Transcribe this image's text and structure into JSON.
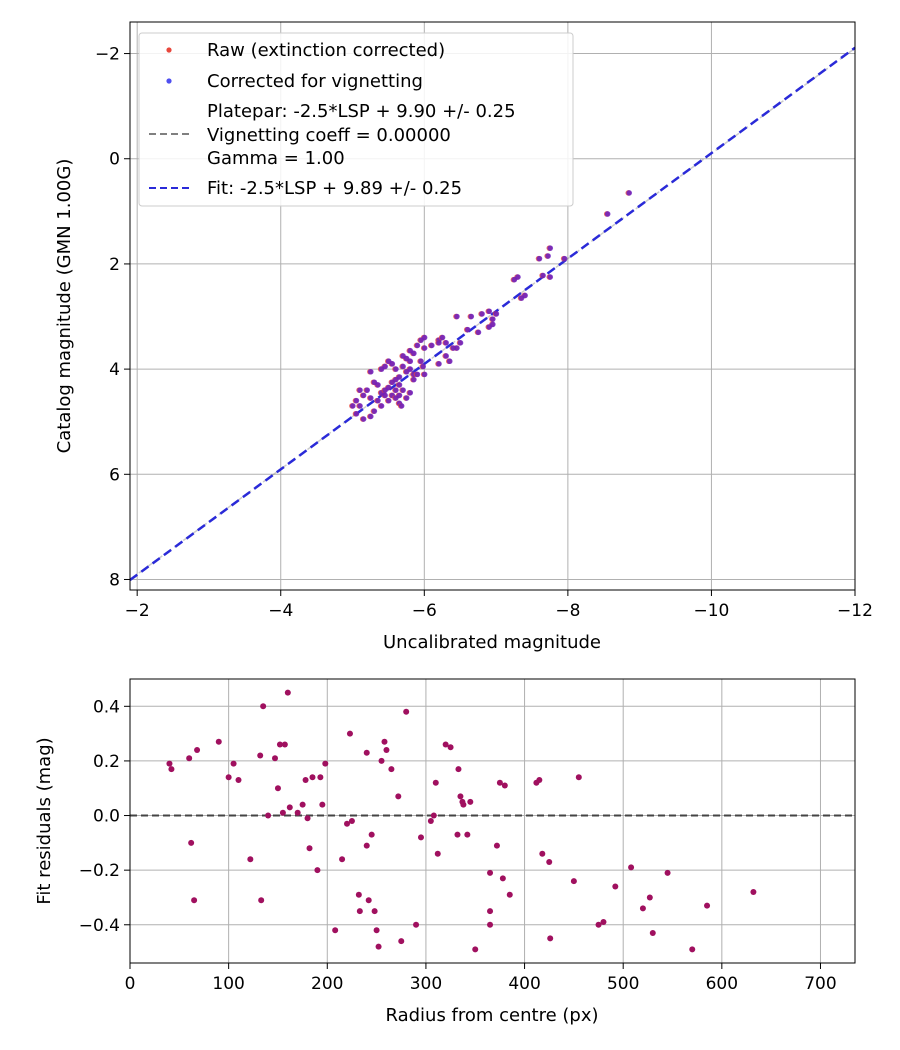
{
  "chart_data": [
    {
      "type": "scatter",
      "xlabel": "Uncalibrated magnitude",
      "ylabel": "Catalog magnitude (GMN 1.00G)",
      "xlim": [
        -1.9,
        -12
      ],
      "ylim": [
        8.2,
        -2.6
      ],
      "xticks": [
        -2,
        -4,
        -6,
        -8,
        -10,
        -12
      ],
      "xtick_labels": [
        "−2",
        "−4",
        "−6",
        "−8",
        "−10",
        "−12"
      ],
      "yticks": [
        -2,
        0,
        2,
        4,
        6,
        8
      ],
      "ytick_labels": [
        "−2",
        "0",
        "2",
        "4",
        "6",
        "8"
      ],
      "grid": true,
      "legend": {
        "position": "top-left",
        "raw_label": "Raw (extinction corrected)",
        "corrected_label": "Corrected for vignetting",
        "platepar_line1": "Platepar: -2.5*LSP + 9.90 +/- 0.25",
        "platepar_line2": "Vignetting coeff = 0.00000",
        "platepar_line3": "Gamma = 1.00",
        "fit_label": "Fit: -2.5*LSP + 9.89 +/- 0.25"
      },
      "colors": {
        "raw": "#e8473c",
        "corrected": "#4f4ff0",
        "overlap": "#6a1fbf",
        "fit": "#2a2ad8",
        "platepar": "#808080"
      },
      "fit_line": {
        "x": [
          -1.9,
          -12
        ],
        "y": [
          8.01,
          -2.11
        ]
      },
      "platepar_line": {
        "x": [
          -1.9,
          -12
        ],
        "y": [
          8.0,
          -2.1
        ]
      },
      "points": [
        [
          -8.85,
          0.65
        ],
        [
          -8.55,
          1.05
        ],
        [
          -7.95,
          1.9
        ],
        [
          -7.75,
          1.7
        ],
        [
          -7.72,
          1.85
        ],
        [
          -7.6,
          1.9
        ],
        [
          -7.75,
          2.25
        ],
        [
          -7.65,
          2.22
        ],
        [
          -7.3,
          2.25
        ],
        [
          -7.25,
          2.3
        ],
        [
          -7.4,
          2.6
        ],
        [
          -7.35,
          2.65
        ],
        [
          -7.0,
          2.95
        ],
        [
          -6.9,
          2.9
        ],
        [
          -6.8,
          2.95
        ],
        [
          -6.95,
          3.05
        ],
        [
          -6.65,
          3.0
        ],
        [
          -6.95,
          3.15
        ],
        [
          -6.9,
          3.2
        ],
        [
          -6.45,
          3.0
        ],
        [
          -6.6,
          3.25
        ],
        [
          -6.75,
          3.3
        ],
        [
          -6.5,
          3.5
        ],
        [
          -6.45,
          3.6
        ],
        [
          -6.4,
          3.6
        ],
        [
          -6.3,
          3.75
        ],
        [
          -6.3,
          3.5
        ],
        [
          -6.2,
          3.45
        ],
        [
          -6.25,
          3.4
        ],
        [
          -6.2,
          3.5
        ],
        [
          -6.2,
          3.9
        ],
        [
          -6.35,
          3.85
        ],
        [
          -6.1,
          3.55
        ],
        [
          -6.0,
          3.4
        ],
        [
          -5.95,
          3.45
        ],
        [
          -5.9,
          3.55
        ],
        [
          -6.0,
          3.6
        ],
        [
          -5.85,
          3.7
        ],
        [
          -5.8,
          3.65
        ],
        [
          -5.95,
          3.85
        ],
        [
          -6.0,
          4.1
        ],
        [
          -5.98,
          3.95
        ],
        [
          -5.8,
          3.85
        ],
        [
          -5.75,
          3.8
        ],
        [
          -5.7,
          3.75
        ],
        [
          -5.8,
          4.0
        ],
        [
          -5.85,
          4.1
        ],
        [
          -5.75,
          4.05
        ],
        [
          -5.7,
          3.95
        ],
        [
          -5.65,
          4.15
        ],
        [
          -5.6,
          4.0
        ],
        [
          -5.55,
          3.9
        ],
        [
          -5.5,
          3.85
        ],
        [
          -5.45,
          3.95
        ],
        [
          -5.4,
          4.0
        ],
        [
          -5.65,
          4.3
        ],
        [
          -5.6,
          4.2
        ],
        [
          -5.55,
          4.25
        ],
        [
          -5.7,
          4.4
        ],
        [
          -5.65,
          4.5
        ],
        [
          -5.6,
          4.4
        ],
        [
          -5.5,
          4.35
        ],
        [
          -5.45,
          4.5
        ],
        [
          -5.4,
          4.45
        ],
        [
          -5.35,
          4.3
        ],
        [
          -5.3,
          4.25
        ],
        [
          -5.25,
          4.05
        ],
        [
          -5.25,
          4.55
        ],
        [
          -5.2,
          4.4
        ],
        [
          -5.15,
          4.5
        ],
        [
          -5.1,
          4.7
        ],
        [
          -5.05,
          4.6
        ],
        [
          -5.0,
          4.7
        ],
        [
          -5.05,
          4.85
        ],
        [
          -5.15,
          4.95
        ],
        [
          -5.1,
          4.4
        ],
        [
          -5.35,
          4.6
        ],
        [
          -5.4,
          4.7
        ],
        [
          -5.5,
          4.6
        ],
        [
          -5.55,
          4.5
        ],
        [
          -5.6,
          4.55
        ],
        [
          -5.65,
          4.65
        ],
        [
          -5.75,
          4.55
        ],
        [
          -5.8,
          4.45
        ],
        [
          -5.85,
          4.2
        ],
        [
          -5.9,
          4.1
        ],
        [
          -5.3,
          4.8
        ],
        [
          -5.25,
          4.9
        ],
        [
          -5.45,
          4.4
        ],
        [
          -5.68,
          4.7
        ]
      ]
    },
    {
      "type": "scatter",
      "xlabel": "Radius from centre (px)",
      "ylabel": "Fit residuals (mag)",
      "xlim": [
        0,
        735
      ],
      "ylim": [
        -0.54,
        0.5
      ],
      "xticks": [
        0,
        100,
        200,
        300,
        400,
        500,
        600,
        700
      ],
      "xtick_labels": [
        "0",
        "100",
        "200",
        "300",
        "400",
        "500",
        "600",
        "700"
      ],
      "yticks": [
        0.4,
        0.2,
        0.0,
        -0.2,
        -0.4
      ],
      "ytick_labels": [
        "0.4",
        "0.2",
        "0.0",
        "−0.2",
        "−0.4"
      ],
      "grid": true,
      "zero_line": 0.0,
      "colors": {
        "points": "#a0105f",
        "zero": "#444444"
      },
      "points": [
        [
          40,
          0.19
        ],
        [
          42,
          0.17
        ],
        [
          60,
          0.21
        ],
        [
          62,
          -0.1
        ],
        [
          65,
          -0.31
        ],
        [
          68,
          0.24
        ],
        [
          90,
          0.27
        ],
        [
          100,
          0.14
        ],
        [
          105,
          0.19
        ],
        [
          110,
          0.13
        ],
        [
          122,
          -0.16
        ],
        [
          132,
          0.22
        ],
        [
          133,
          -0.31
        ],
        [
          135,
          0.4
        ],
        [
          140,
          0.0
        ],
        [
          147,
          0.21
        ],
        [
          150,
          0.1
        ],
        [
          152,
          0.26
        ],
        [
          155,
          0.01
        ],
        [
          157,
          0.26
        ],
        [
          160,
          0.45
        ],
        [
          162,
          0.03
        ],
        [
          170,
          0.01
        ],
        [
          175,
          0.04
        ],
        [
          178,
          0.13
        ],
        [
          180,
          -0.01
        ],
        [
          182,
          -0.12
        ],
        [
          185,
          0.14
        ],
        [
          190,
          -0.2
        ],
        [
          193,
          0.14
        ],
        [
          195,
          0.04
        ],
        [
          198,
          0.19
        ],
        [
          208,
          -0.42
        ],
        [
          215,
          -0.16
        ],
        [
          220,
          -0.03
        ],
        [
          223,
          0.3
        ],
        [
          225,
          -0.02
        ],
        [
          232,
          -0.29
        ],
        [
          233,
          -0.35
        ],
        [
          240,
          0.23
        ],
        [
          240,
          -0.11
        ],
        [
          242,
          -0.31
        ],
        [
          245,
          -0.07
        ],
        [
          248,
          -0.35
        ],
        [
          250,
          -0.42
        ],
        [
          252,
          -0.48
        ],
        [
          255,
          0.2
        ],
        [
          258,
          0.27
        ],
        [
          260,
          0.24
        ],
        [
          265,
          0.17
        ],
        [
          272,
          0.07
        ],
        [
          275,
          -0.46
        ],
        [
          280,
          0.38
        ],
        [
          290,
          -0.4
        ],
        [
          295,
          -0.08
        ],
        [
          305,
          -0.02
        ],
        [
          308,
          0.0
        ],
        [
          310,
          0.12
        ],
        [
          312,
          -0.14
        ],
        [
          320,
          0.26
        ],
        [
          325,
          0.25
        ],
        [
          332,
          -0.07
        ],
        [
          333,
          0.17
        ],
        [
          335,
          0.07
        ],
        [
          337,
          0.05
        ],
        [
          338,
          0.04
        ],
        [
          342,
          -0.07
        ],
        [
          345,
          0.05
        ],
        [
          350,
          -0.49
        ],
        [
          365,
          -0.4
        ],
        [
          365,
          -0.35
        ],
        [
          365,
          -0.21
        ],
        [
          372,
          -0.11
        ],
        [
          375,
          0.12
        ],
        [
          378,
          -0.23
        ],
        [
          380,
          0.11
        ],
        [
          385,
          -0.29
        ],
        [
          412,
          0.12
        ],
        [
          415,
          0.13
        ],
        [
          418,
          -0.14
        ],
        [
          425,
          -0.17
        ],
        [
          426,
          -0.45
        ],
        [
          450,
          -0.24
        ],
        [
          455,
          0.14
        ],
        [
          475,
          -0.4
        ],
        [
          480,
          -0.39
        ],
        [
          492,
          -0.26
        ],
        [
          508,
          -0.19
        ],
        [
          520,
          -0.34
        ],
        [
          527,
          -0.3
        ],
        [
          530,
          -0.43
        ],
        [
          545,
          -0.21
        ],
        [
          570,
          -0.49
        ],
        [
          585,
          -0.33
        ],
        [
          632,
          -0.28
        ]
      ]
    }
  ]
}
